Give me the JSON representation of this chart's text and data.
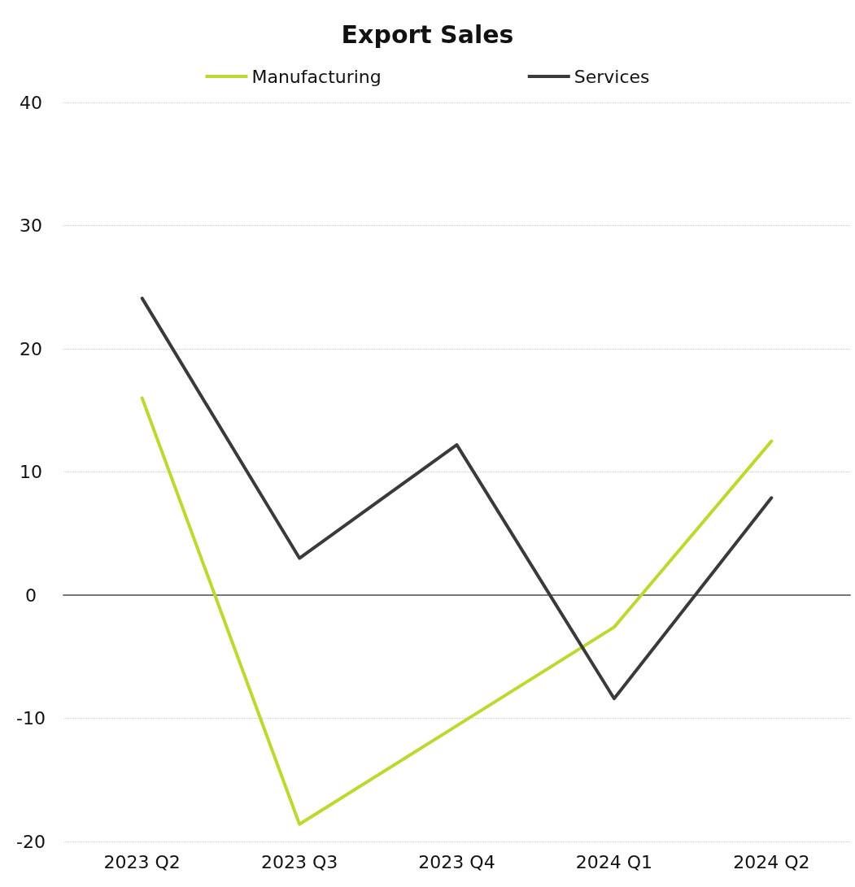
{
  "chart_data": {
    "type": "line",
    "title": "Export Sales",
    "categories": [
      "2023 Q2",
      "2023 Q3",
      "2023 Q4",
      "2024 Q1",
      "2024 Q2"
    ],
    "series": [
      {
        "name": "Manufacturing",
        "color": "#bfd730",
        "values": [
          16.0,
          -18.6,
          -10.6,
          -2.6,
          12.5
        ]
      },
      {
        "name": "Services",
        "color": "#3a3a3a",
        "values": [
          24.1,
          3.0,
          12.2,
          -8.4,
          7.9
        ]
      }
    ],
    "ylim": [
      -20,
      40
    ],
    "yticks": [
      -20,
      -10,
      0,
      10,
      20,
      30,
      40
    ],
    "grid": "y",
    "legend": "top",
    "marker": "none",
    "line_style": "solid"
  }
}
